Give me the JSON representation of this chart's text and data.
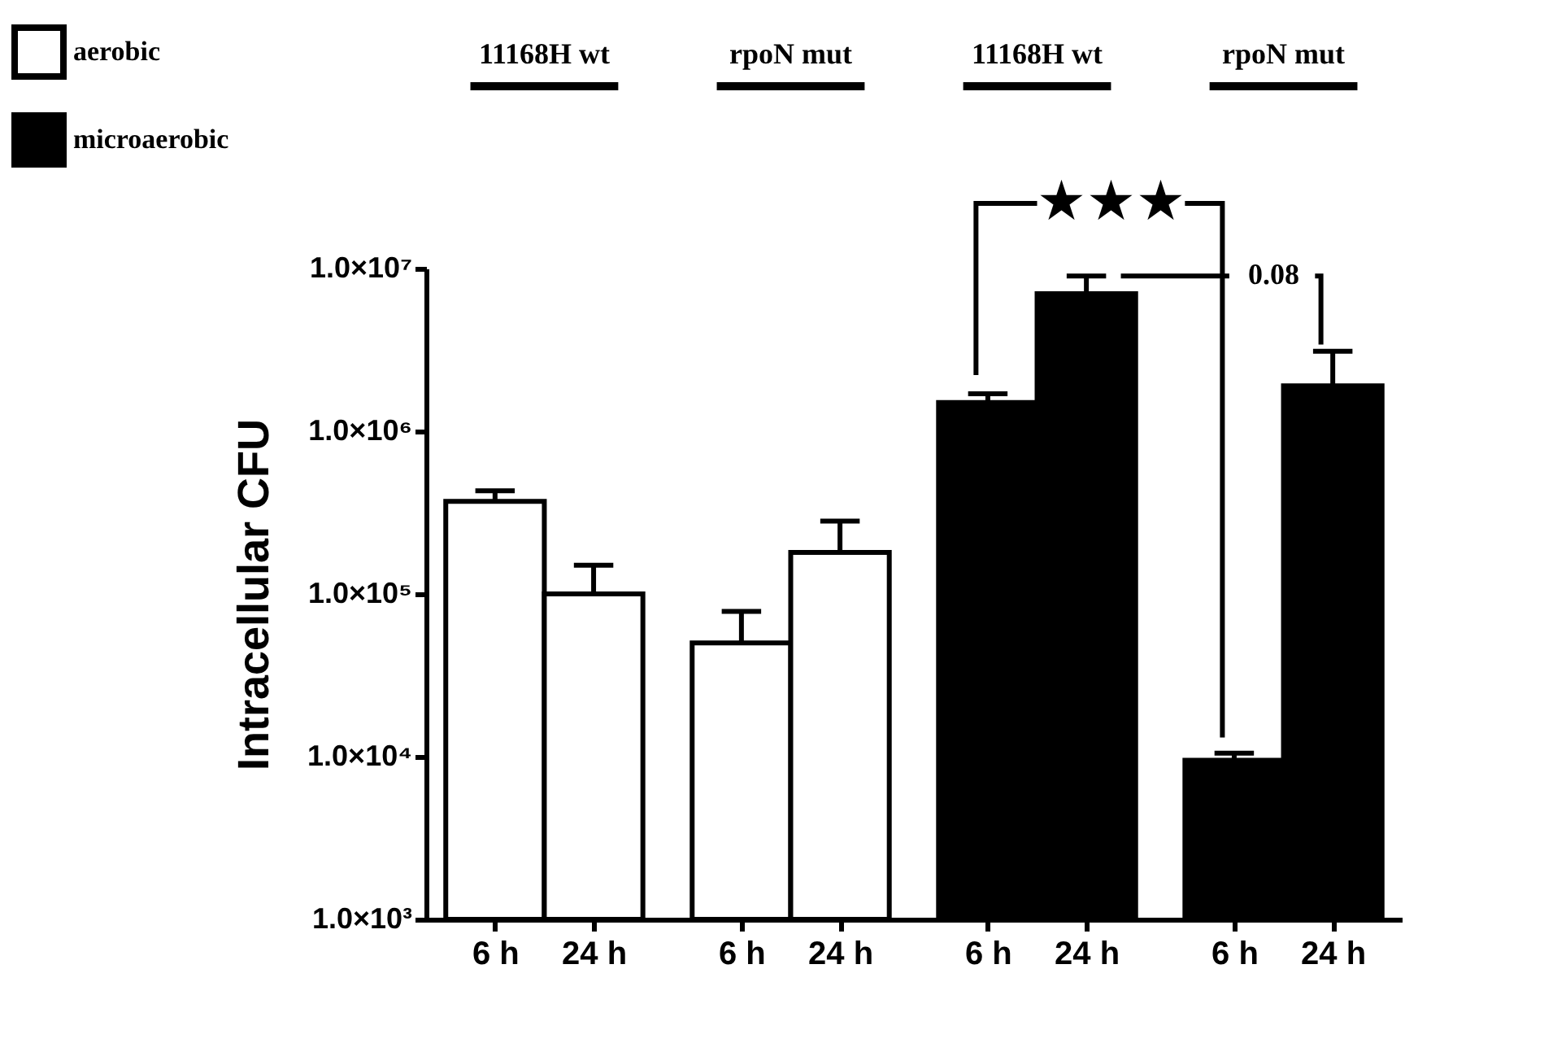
{
  "chart_data": {
    "type": "bar",
    "ylabel": "Intracellular CFU",
    "categories": [
      "6 h",
      "24 h",
      "6 h",
      "24 h",
      "6 h",
      "24 h",
      "6 h",
      "24 h"
    ],
    "series": [
      {
        "name": "aerobic",
        "color": "#ffffff",
        "values": [
          370000,
          100000,
          50000,
          180000,
          null,
          null,
          null,
          null
        ],
        "errors": [
          [
            370000,
            430000
          ],
          [
            100000,
            150000
          ],
          [
            50000,
            78000
          ],
          [
            180000,
            280000
          ],
          null,
          null,
          null,
          null
        ]
      },
      {
        "name": "microaerobic",
        "color": "#000000",
        "values": [
          null,
          null,
          null,
          null,
          1500000,
          7000000,
          9500,
          1900000
        ],
        "errors": [
          null,
          null,
          null,
          null,
          [
            1500000,
            1700000
          ],
          [
            7000000,
            9000000
          ],
          [
            9500,
            10500
          ],
          [
            1900000,
            3100000
          ]
        ]
      }
    ],
    "log": true,
    "ylim": [
      1000,
      10000000
    ],
    "yticks": [
      {
        "value": 1000,
        "label": "1.0×10³"
      },
      {
        "value": 10000,
        "label": "1.0×10⁴"
      },
      {
        "value": 100000,
        "label": "1.0×10⁵"
      },
      {
        "value": 1000000,
        "label": "1.0×10⁶"
      },
      {
        "value": 10000000,
        "label": "1.0×10⁷"
      }
    ],
    "grid": false,
    "legend": "top left",
    "annotations": [
      "11168H wt",
      "rpoN mut",
      "11168H wt",
      "rpoN mut",
      "★★★",
      "0.08"
    ]
  }
}
